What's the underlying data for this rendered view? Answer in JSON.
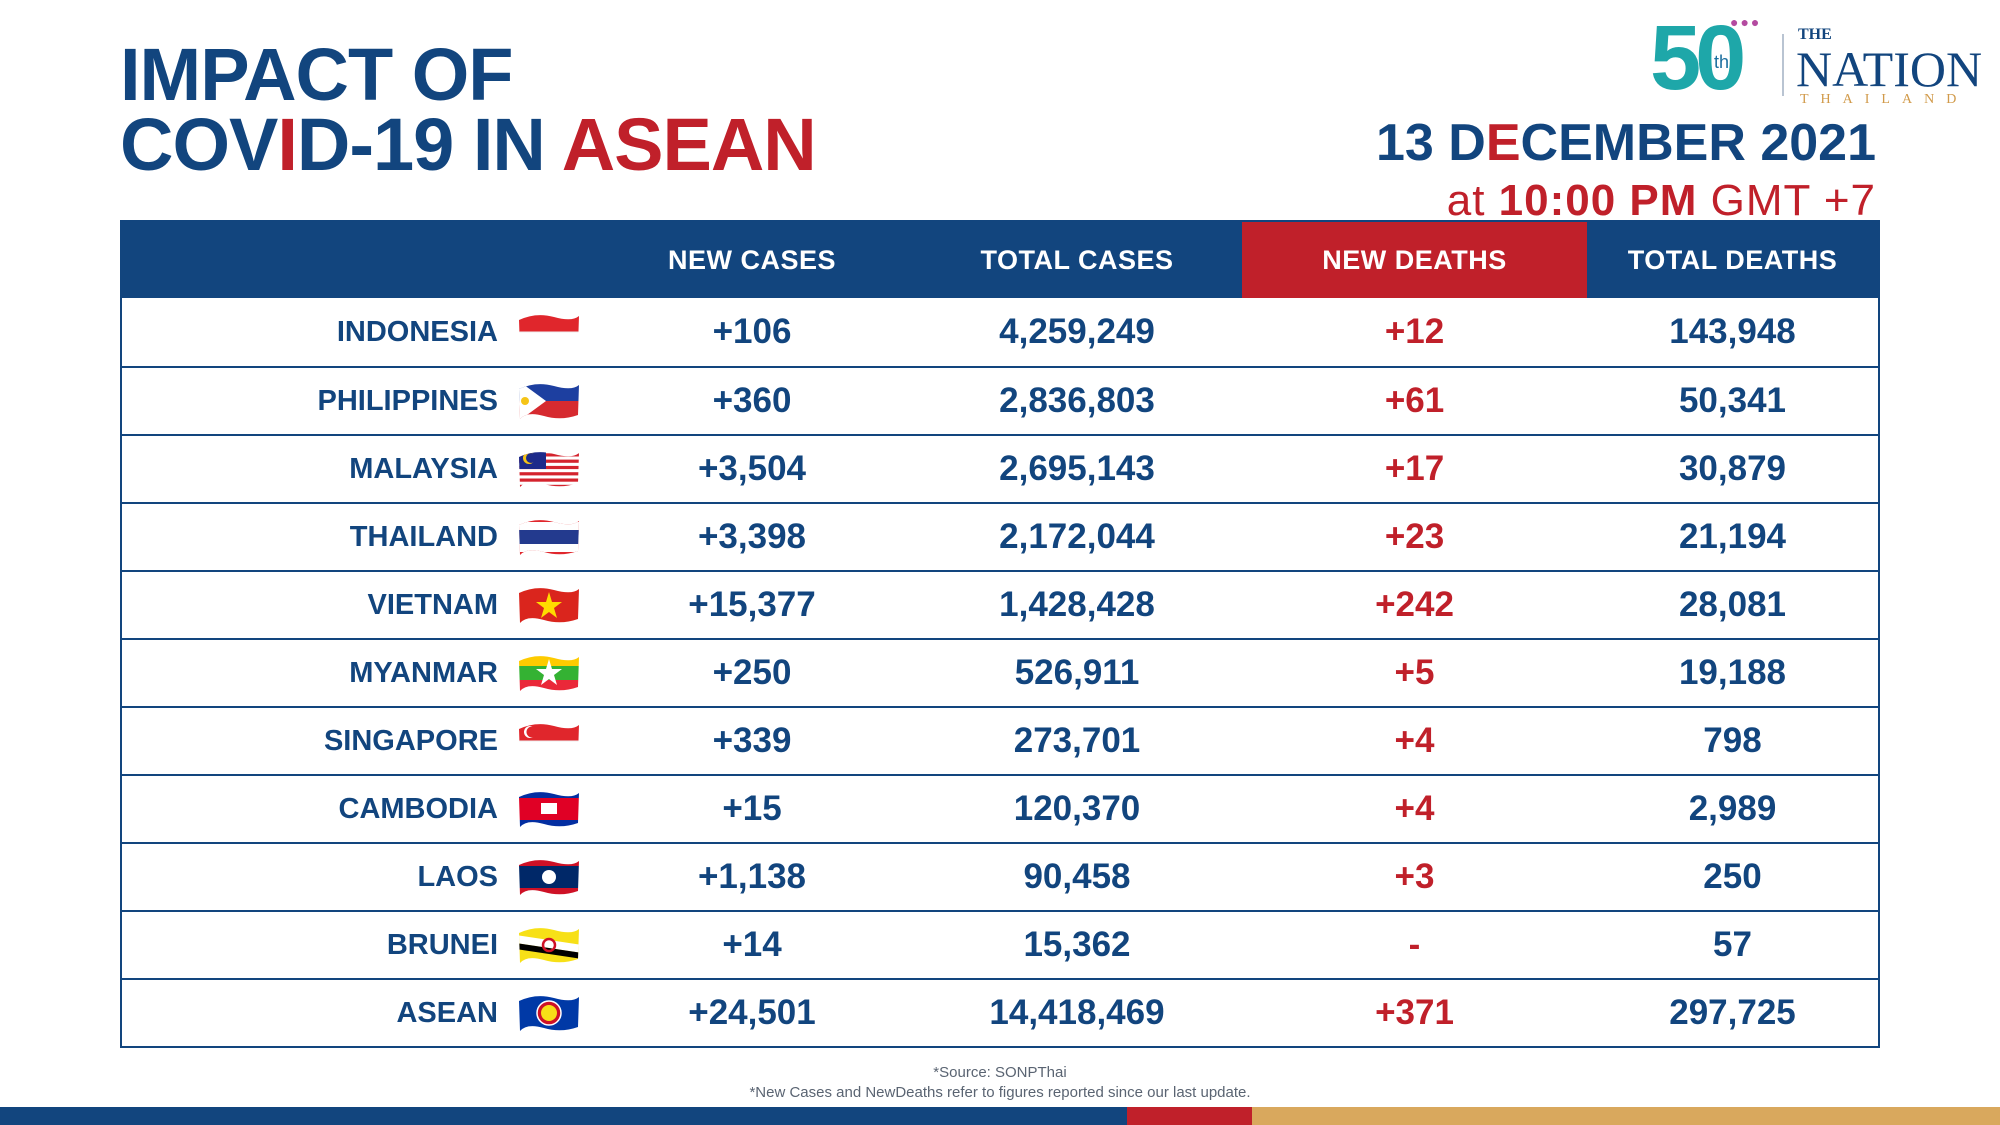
{
  "header": {
    "title_line1": "IMPACT OF",
    "title_line2_part1": "COV",
    "title_line2_part2": "I",
    "title_line2_part3": "D-19 IN ",
    "title_line2_part4": "ASEAN",
    "date_part1": "13 D",
    "date_part2": "E",
    "date_part3": "CEMBER 2021",
    "time_prefix": "at ",
    "time_bold": "10:00 PM",
    "time_suffix": " GMT +7"
  },
  "logo": {
    "fifty": "50",
    "th": "th",
    "the": "THE",
    "nation": "NATION",
    "thailand": "THAILAND"
  },
  "table": {
    "columns": [
      "",
      "NEW CASES",
      "TOTAL CASES",
      "NEW DEATHS",
      "TOTAL DEATHS"
    ],
    "rows": [
      {
        "country": "INDONESIA",
        "new_cases": "+106",
        "total_cases": "4,259,249",
        "new_deaths": "+12",
        "total_deaths": "143,948",
        "flag": "indonesia-flag-icon"
      },
      {
        "country": "PHILIPPINES",
        "new_cases": "+360",
        "total_cases": "2,836,803",
        "new_deaths": "+61",
        "total_deaths": "50,341",
        "flag": "philippines-flag-icon"
      },
      {
        "country": "MALAYSIA",
        "new_cases": "+3,504",
        "total_cases": "2,695,143",
        "new_deaths": "+17",
        "total_deaths": "30,879",
        "flag": "malaysia-flag-icon"
      },
      {
        "country": "THAILAND",
        "new_cases": "+3,398",
        "total_cases": "2,172,044",
        "new_deaths": "+23",
        "total_deaths": "21,194",
        "flag": "thailand-flag-icon"
      },
      {
        "country": "VIETNAM",
        "new_cases": "+15,377",
        "total_cases": "1,428,428",
        "new_deaths": "+242",
        "total_deaths": "28,081",
        "flag": "vietnam-flag-icon"
      },
      {
        "country": "MYANMAR",
        "new_cases": "+250",
        "total_cases": "526,911",
        "new_deaths": "+5",
        "total_deaths": "19,188",
        "flag": "myanmar-flag-icon"
      },
      {
        "country": "SINGAPORE",
        "new_cases": "+339",
        "total_cases": "273,701",
        "new_deaths": "+4",
        "total_deaths": "798",
        "flag": "singapore-flag-icon"
      },
      {
        "country": "CAMBODIA",
        "new_cases": "+15",
        "total_cases": "120,370",
        "new_deaths": "+4",
        "total_deaths": "2,989",
        "flag": "cambodia-flag-icon"
      },
      {
        "country": "LAOS",
        "new_cases": "+1,138",
        "total_cases": "90,458",
        "new_deaths": "+3",
        "total_deaths": "250",
        "flag": "laos-flag-icon"
      },
      {
        "country": "BRUNEI",
        "new_cases": "+14",
        "total_cases": "15,362",
        "new_deaths": "-",
        "total_deaths": "57",
        "flag": "brunei-flag-icon"
      },
      {
        "country": "ASEAN",
        "new_cases": "+24,501",
        "total_cases": "14,418,469",
        "new_deaths": "+371",
        "total_deaths": "297,725",
        "flag": "asean-flag-icon"
      }
    ]
  },
  "footer": {
    "source": "*Source: SONPThai",
    "note": "*New Cases and NewDeaths refer to figures reported since our last update."
  },
  "colors": {
    "navy": "#12457e",
    "red": "#c0202a",
    "gold": "#d9a85d"
  }
}
